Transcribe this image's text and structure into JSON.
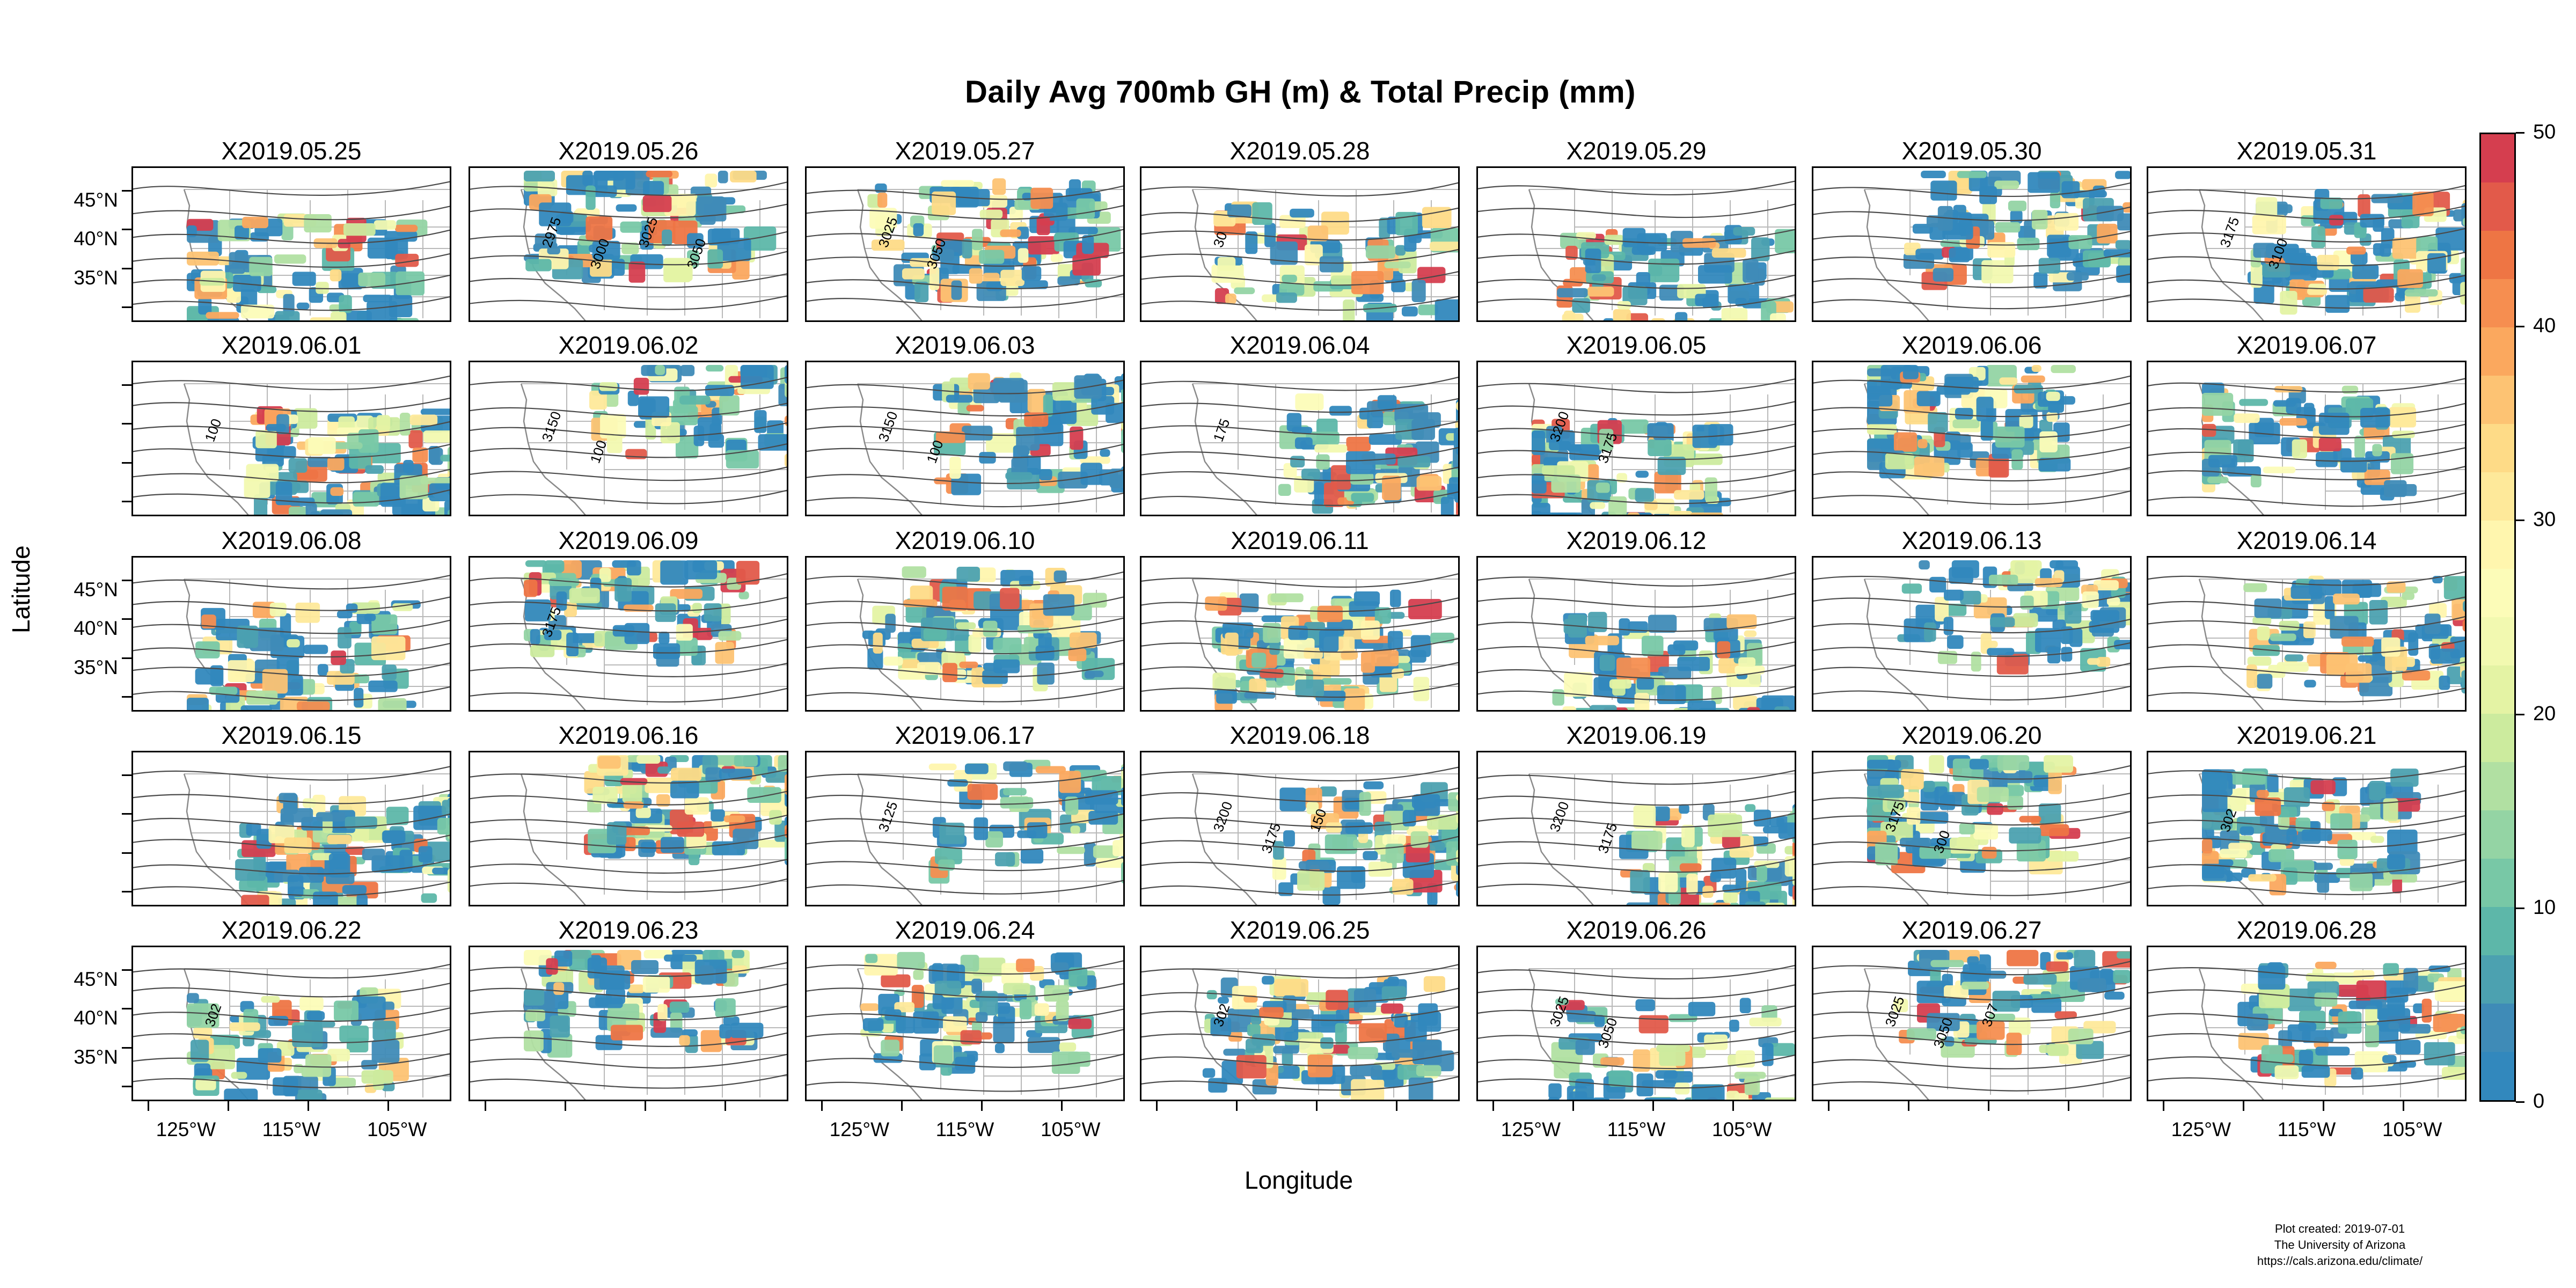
{
  "title": "Daily Avg 700mb GH (m) & Total Precip (mm)",
  "axes": {
    "ylabel": "Latitude",
    "xlabel": "Longitude",
    "lat_ticks": [
      "45°N",
      "40°N",
      "35°N"
    ],
    "lon_ticks": [
      "125°W",
      "115°W",
      "105°W"
    ]
  },
  "panels": [
    {
      "date": "X2019.05.25",
      "contours": []
    },
    {
      "date": "X2019.05.26",
      "contours": [
        "2975",
        "3000",
        "3025",
        "3050"
      ]
    },
    {
      "date": "X2019.05.27",
      "contours": [
        "3025",
        "3050"
      ]
    },
    {
      "date": "X2019.05.28",
      "contours": [
        "30"
      ]
    },
    {
      "date": "X2019.05.29",
      "contours": []
    },
    {
      "date": "X2019.05.30",
      "contours": []
    },
    {
      "date": "X2019.05.31",
      "contours": [
        "3175",
        "3100"
      ]
    },
    {
      "date": "X2019.06.01",
      "contours": [
        "100"
      ]
    },
    {
      "date": "X2019.06.02",
      "contours": [
        "3150",
        "100"
      ]
    },
    {
      "date": "X2019.06.03",
      "contours": [
        "3150",
        "100"
      ]
    },
    {
      "date": "X2019.06.04",
      "contours": [
        "175"
      ]
    },
    {
      "date": "X2019.06.05",
      "contours": [
        "3200",
        "3175"
      ]
    },
    {
      "date": "X2019.06.06",
      "contours": []
    },
    {
      "date": "X2019.06.07",
      "contours": []
    },
    {
      "date": "X2019.06.08",
      "contours": []
    },
    {
      "date": "X2019.06.09",
      "contours": [
        "3175"
      ]
    },
    {
      "date": "X2019.06.10",
      "contours": []
    },
    {
      "date": "X2019.06.11",
      "contours": []
    },
    {
      "date": "X2019.06.12",
      "contours": []
    },
    {
      "date": "X2019.06.13",
      "contours": []
    },
    {
      "date": "X2019.06.14",
      "contours": []
    },
    {
      "date": "X2019.06.15",
      "contours": []
    },
    {
      "date": "X2019.06.16",
      "contours": []
    },
    {
      "date": "X2019.06.17",
      "contours": [
        "3125"
      ]
    },
    {
      "date": "X2019.06.18",
      "contours": [
        "3200",
        "3175",
        "150"
      ]
    },
    {
      "date": "X2019.06.19",
      "contours": [
        "3200",
        "3175"
      ]
    },
    {
      "date": "X2019.06.20",
      "contours": [
        "3175",
        "300"
      ]
    },
    {
      "date": "X2019.06.21",
      "contours": [
        "302"
      ]
    },
    {
      "date": "X2019.06.22",
      "contours": [
        "302"
      ]
    },
    {
      "date": "X2019.06.23",
      "contours": []
    },
    {
      "date": "X2019.06.24",
      "contours": []
    },
    {
      "date": "X2019.06.25",
      "contours": [
        "302"
      ]
    },
    {
      "date": "X2019.06.26",
      "contours": [
        "3025",
        "3050"
      ]
    },
    {
      "date": "X2019.06.27",
      "contours": [
        "3025",
        "3050",
        "307"
      ]
    },
    {
      "date": "X2019.06.28",
      "contours": []
    }
  ],
  "colorbar": {
    "labels": [
      "50",
      "40",
      "30",
      "20",
      "10",
      "0"
    ],
    "colors": [
      "#d53e4f",
      "#e25a4a",
      "#ee7544",
      "#f68e50",
      "#fba85e",
      "#fdc373",
      "#fedb87",
      "#fee99a",
      "#fff6ae",
      "#fcfcb8",
      "#f2f9b0",
      "#e4f3a4",
      "#cceb9e",
      "#b1e0a2",
      "#94d4a4",
      "#78c8a6",
      "#5db7a9",
      "#4ca1b0",
      "#3f8bb7",
      "#3288bd"
    ]
  },
  "credits": [
    "Plot created: 2019-07-01",
    "The University of Arizona",
    "https://cals.arizona.edu/climate/"
  ]
}
